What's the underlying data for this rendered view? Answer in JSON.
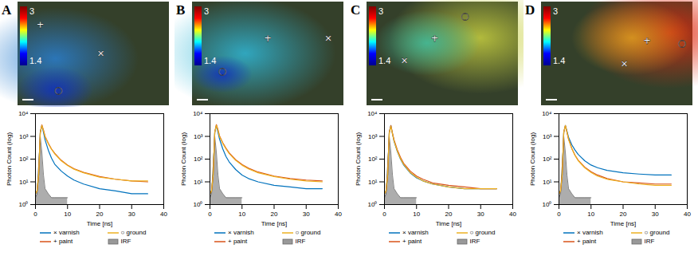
{
  "chart_data": [
    {
      "type": "line",
      "title": "A",
      "xlabel": "Time [ns]",
      "ylabel": "Photon Count (log)",
      "log": "y",
      "legend": "bottom",
      "xlim": [
        0,
        40
      ],
      "xticks": [
        0,
        10,
        20,
        30,
        40
      ],
      "ylim": [
        1,
        10000
      ],
      "yticks": [
        {
          "value": 1,
          "label": "10⁰"
        },
        {
          "value": 10,
          "label": "10¹"
        },
        {
          "value": 100,
          "label": "10²"
        },
        {
          "value": 1000,
          "label": "10³"
        },
        {
          "value": 10000,
          "label": "10⁴"
        }
      ],
      "colorbar": {
        "range": [
          1.4,
          3
        ],
        "ticks": [
          1.4,
          3
        ]
      },
      "x": [
        0,
        0.5,
        1,
        1.5,
        2,
        2.5,
        3,
        4,
        5,
        6,
        8,
        10,
        12,
        15,
        20,
        25,
        30,
        35
      ],
      "series": [
        {
          "name": "× varnish",
          "color": "#0072BD",
          "values": [
            3,
            4,
            20,
            1500,
            3000,
            1500,
            700,
            250,
            110,
            60,
            30,
            18,
            12,
            8,
            5,
            4,
            3,
            3
          ]
        },
        {
          "name": "+ paint",
          "color": "#D95319",
          "values": [
            3,
            4,
            20,
            1500,
            3200,
            1900,
            1000,
            500,
            280,
            180,
            90,
            55,
            38,
            26,
            17,
            13,
            11,
            10
          ]
        },
        {
          "name": "○ ground",
          "color": "#EDB120",
          "values": [
            3,
            4,
            20,
            1400,
            3000,
            1800,
            950,
            480,
            270,
            170,
            85,
            52,
            36,
            25,
            16,
            13,
            11,
            11
          ]
        },
        {
          "name": "IRF",
          "type": "area",
          "color": "#999999",
          "values": [
            2,
            3,
            50,
            1000,
            200,
            20,
            5,
            3,
            2,
            2,
            2,
            2,
            null,
            null,
            null,
            null,
            null,
            null
          ]
        }
      ]
    },
    {
      "type": "line",
      "title": "B",
      "xlabel": "Time [ns]",
      "ylabel": "Photon Count (log)",
      "log": "y",
      "legend": "bottom",
      "xlim": [
        0,
        40
      ],
      "xticks": [
        0,
        10,
        20,
        30,
        40
      ],
      "ylim": [
        1,
        10000
      ],
      "yticks": [
        {
          "value": 1,
          "label": "10⁰"
        },
        {
          "value": 10,
          "label": "10¹"
        },
        {
          "value": 100,
          "label": "10²"
        },
        {
          "value": 1000,
          "label": "10³"
        },
        {
          "value": 10000,
          "label": "10⁴"
        }
      ],
      "colorbar": {
        "range": [
          1.4,
          3
        ],
        "ticks": [
          1.4,
          3
        ]
      },
      "x": [
        0,
        0.5,
        1,
        1.5,
        2,
        2.5,
        3,
        4,
        5,
        6,
        8,
        10,
        12,
        15,
        20,
        25,
        30,
        35
      ],
      "series": [
        {
          "name": "× varnish",
          "color": "#0072BD",
          "values": [
            3,
            4,
            20,
            1500,
            3000,
            1500,
            750,
            280,
            130,
            75,
            35,
            20,
            14,
            10,
            7,
            6,
            5,
            5
          ]
        },
        {
          "name": "+ paint",
          "color": "#D95319",
          "values": [
            3,
            4,
            20,
            1500,
            3300,
            2000,
            1050,
            520,
            300,
            190,
            95,
            58,
            40,
            27,
            18,
            14,
            12,
            11
          ]
        },
        {
          "name": "○ ground",
          "color": "#EDB120",
          "values": [
            3,
            4,
            20,
            1500,
            3100,
            1850,
            980,
            490,
            280,
            175,
            88,
            54,
            37,
            25,
            17,
            13,
            11,
            10
          ]
        },
        {
          "name": "IRF",
          "type": "area",
          "color": "#999999",
          "values": [
            2,
            3,
            50,
            1000,
            200,
            20,
            5,
            3,
            2,
            2,
            2,
            2,
            null,
            null,
            null,
            null,
            null,
            null
          ]
        }
      ]
    },
    {
      "type": "line",
      "title": "C",
      "xlabel": "Time [ns]",
      "ylabel": "Photon Count (log)",
      "log": "y",
      "legend": "bottom",
      "xlim": [
        0,
        40
      ],
      "xticks": [
        0,
        10,
        20,
        30,
        40
      ],
      "ylim": [
        1,
        10000
      ],
      "yticks": [
        {
          "value": 1,
          "label": "10⁰"
        },
        {
          "value": 10,
          "label": "10¹"
        },
        {
          "value": 100,
          "label": "10²"
        },
        {
          "value": 1000,
          "label": "10³"
        },
        {
          "value": 10000,
          "label": "10⁴"
        }
      ],
      "colorbar": {
        "range": [
          1.4,
          3
        ],
        "ticks": [
          1.4,
          3
        ]
      },
      "x": [
        0,
        0.5,
        1,
        1.5,
        2,
        2.5,
        3,
        4,
        5,
        6,
        8,
        10,
        12,
        15,
        20,
        25,
        30,
        35
      ],
      "series": [
        {
          "name": "× varnish",
          "color": "#0072BD",
          "values": [
            3,
            4,
            20,
            1500,
            3000,
            1300,
            600,
            220,
            100,
            55,
            25,
            15,
            11,
            8,
            6,
            5,
            5,
            5
          ]
        },
        {
          "name": "+ paint",
          "color": "#D95319",
          "values": [
            3,
            4,
            20,
            1500,
            3000,
            1400,
            700,
            260,
            120,
            65,
            30,
            18,
            13,
            9,
            7,
            6,
            5,
            5
          ]
        },
        {
          "name": "○ ground",
          "color": "#EDB120",
          "values": [
            3,
            4,
            20,
            1400,
            2800,
            1300,
            620,
            230,
            105,
            58,
            26,
            16,
            11,
            8,
            6,
            5,
            5,
            5
          ]
        },
        {
          "name": "IRF",
          "type": "area",
          "color": "#999999",
          "values": [
            2,
            3,
            50,
            1000,
            200,
            20,
            5,
            3,
            2,
            2,
            2,
            2,
            null,
            null,
            null,
            null,
            null,
            null
          ]
        }
      ]
    },
    {
      "type": "line",
      "title": "D",
      "xlabel": "Time [ns]",
      "ylabel": "Photon Count (log)",
      "log": "y",
      "legend": "bottom",
      "xlim": [
        0,
        40
      ],
      "xticks": [
        0,
        10,
        20,
        30,
        40
      ],
      "ylim": [
        1,
        10000
      ],
      "yticks": [
        {
          "value": 1,
          "label": "10⁰"
        },
        {
          "value": 10,
          "label": "10¹"
        },
        {
          "value": 100,
          "label": "10²"
        },
        {
          "value": 1000,
          "label": "10³"
        },
        {
          "value": 10000,
          "label": "10⁴"
        }
      ],
      "colorbar": {
        "range": [
          1.4,
          3
        ],
        "ticks": [
          1.4,
          3
        ]
      },
      "x": [
        0,
        0.5,
        1,
        1.5,
        2,
        2.5,
        3,
        4,
        5,
        6,
        8,
        10,
        12,
        15,
        20,
        25,
        30,
        35
      ],
      "series": [
        {
          "name": "× varnish",
          "color": "#0072BD",
          "values": [
            3,
            4,
            20,
            1500,
            3000,
            1700,
            900,
            430,
            250,
            160,
            85,
            55,
            42,
            32,
            25,
            22,
            20,
            20
          ]
        },
        {
          "name": "+ paint",
          "color": "#D95319",
          "values": [
            3,
            4,
            20,
            1500,
            3000,
            1500,
            750,
            300,
            150,
            90,
            45,
            28,
            20,
            14,
            10,
            9,
            8,
            8
          ]
        },
        {
          "name": "○ ground",
          "color": "#EDB120",
          "values": [
            3,
            4,
            20,
            1500,
            3000,
            1500,
            740,
            290,
            145,
            85,
            42,
            26,
            18,
            13,
            10,
            8,
            7,
            7
          ]
        },
        {
          "name": "IRF",
          "type": "area",
          "color": "#999999",
          "values": [
            2,
            3,
            50,
            1000,
            200,
            20,
            5,
            3,
            2,
            2,
            2,
            2,
            null,
            null,
            null,
            null,
            null,
            null
          ]
        }
      ]
    }
  ]
}
